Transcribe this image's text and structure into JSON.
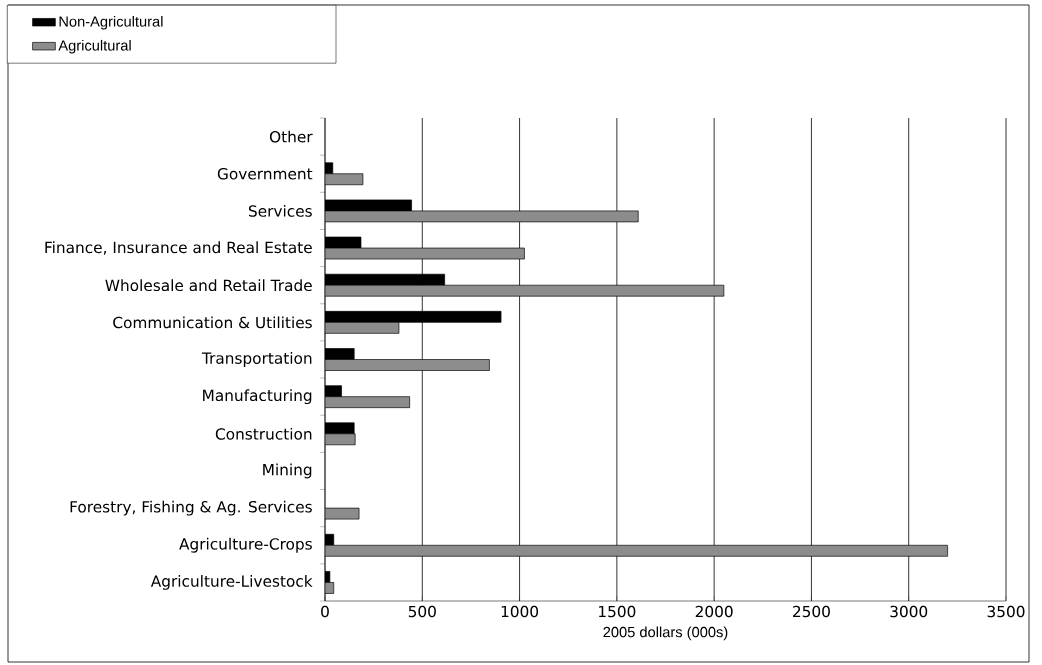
{
  "chart_data": {
    "type": "bar",
    "orientation": "horizontal",
    "xlabel": "2005 dollars (000s)",
    "categories": [
      "Other",
      "Government",
      "Services",
      "Finance, Insurance and Real Estate",
      "Wholesale and Retail Trade",
      "Communication & Utilities",
      "Transportation",
      "Manufacturing",
      "Construction",
      "Mining",
      "Forestry, Fishing & Ag. Services",
      "Agriculture-Crops",
      "Agriculture-Livestock"
    ],
    "series": [
      {
        "name": "Non-Agricultural",
        "color": "#000000",
        "values": [
          null,
          40,
          445,
          185,
          615,
          905,
          150,
          85,
          150,
          null,
          null,
          45,
          25
        ]
      },
      {
        "name": "Agricultural",
        "color": "#8c8c8c",
        "values": [
          null,
          195,
          1610,
          1025,
          2050,
          380,
          845,
          435,
          155,
          null,
          175,
          3200,
          45
        ]
      }
    ],
    "xlim": [
      0,
      3500
    ],
    "xticks": [
      0,
      500,
      1000,
      1500,
      2000,
      2500,
      3000,
      3500
    ],
    "grid": "x",
    "legend": "top left"
  }
}
